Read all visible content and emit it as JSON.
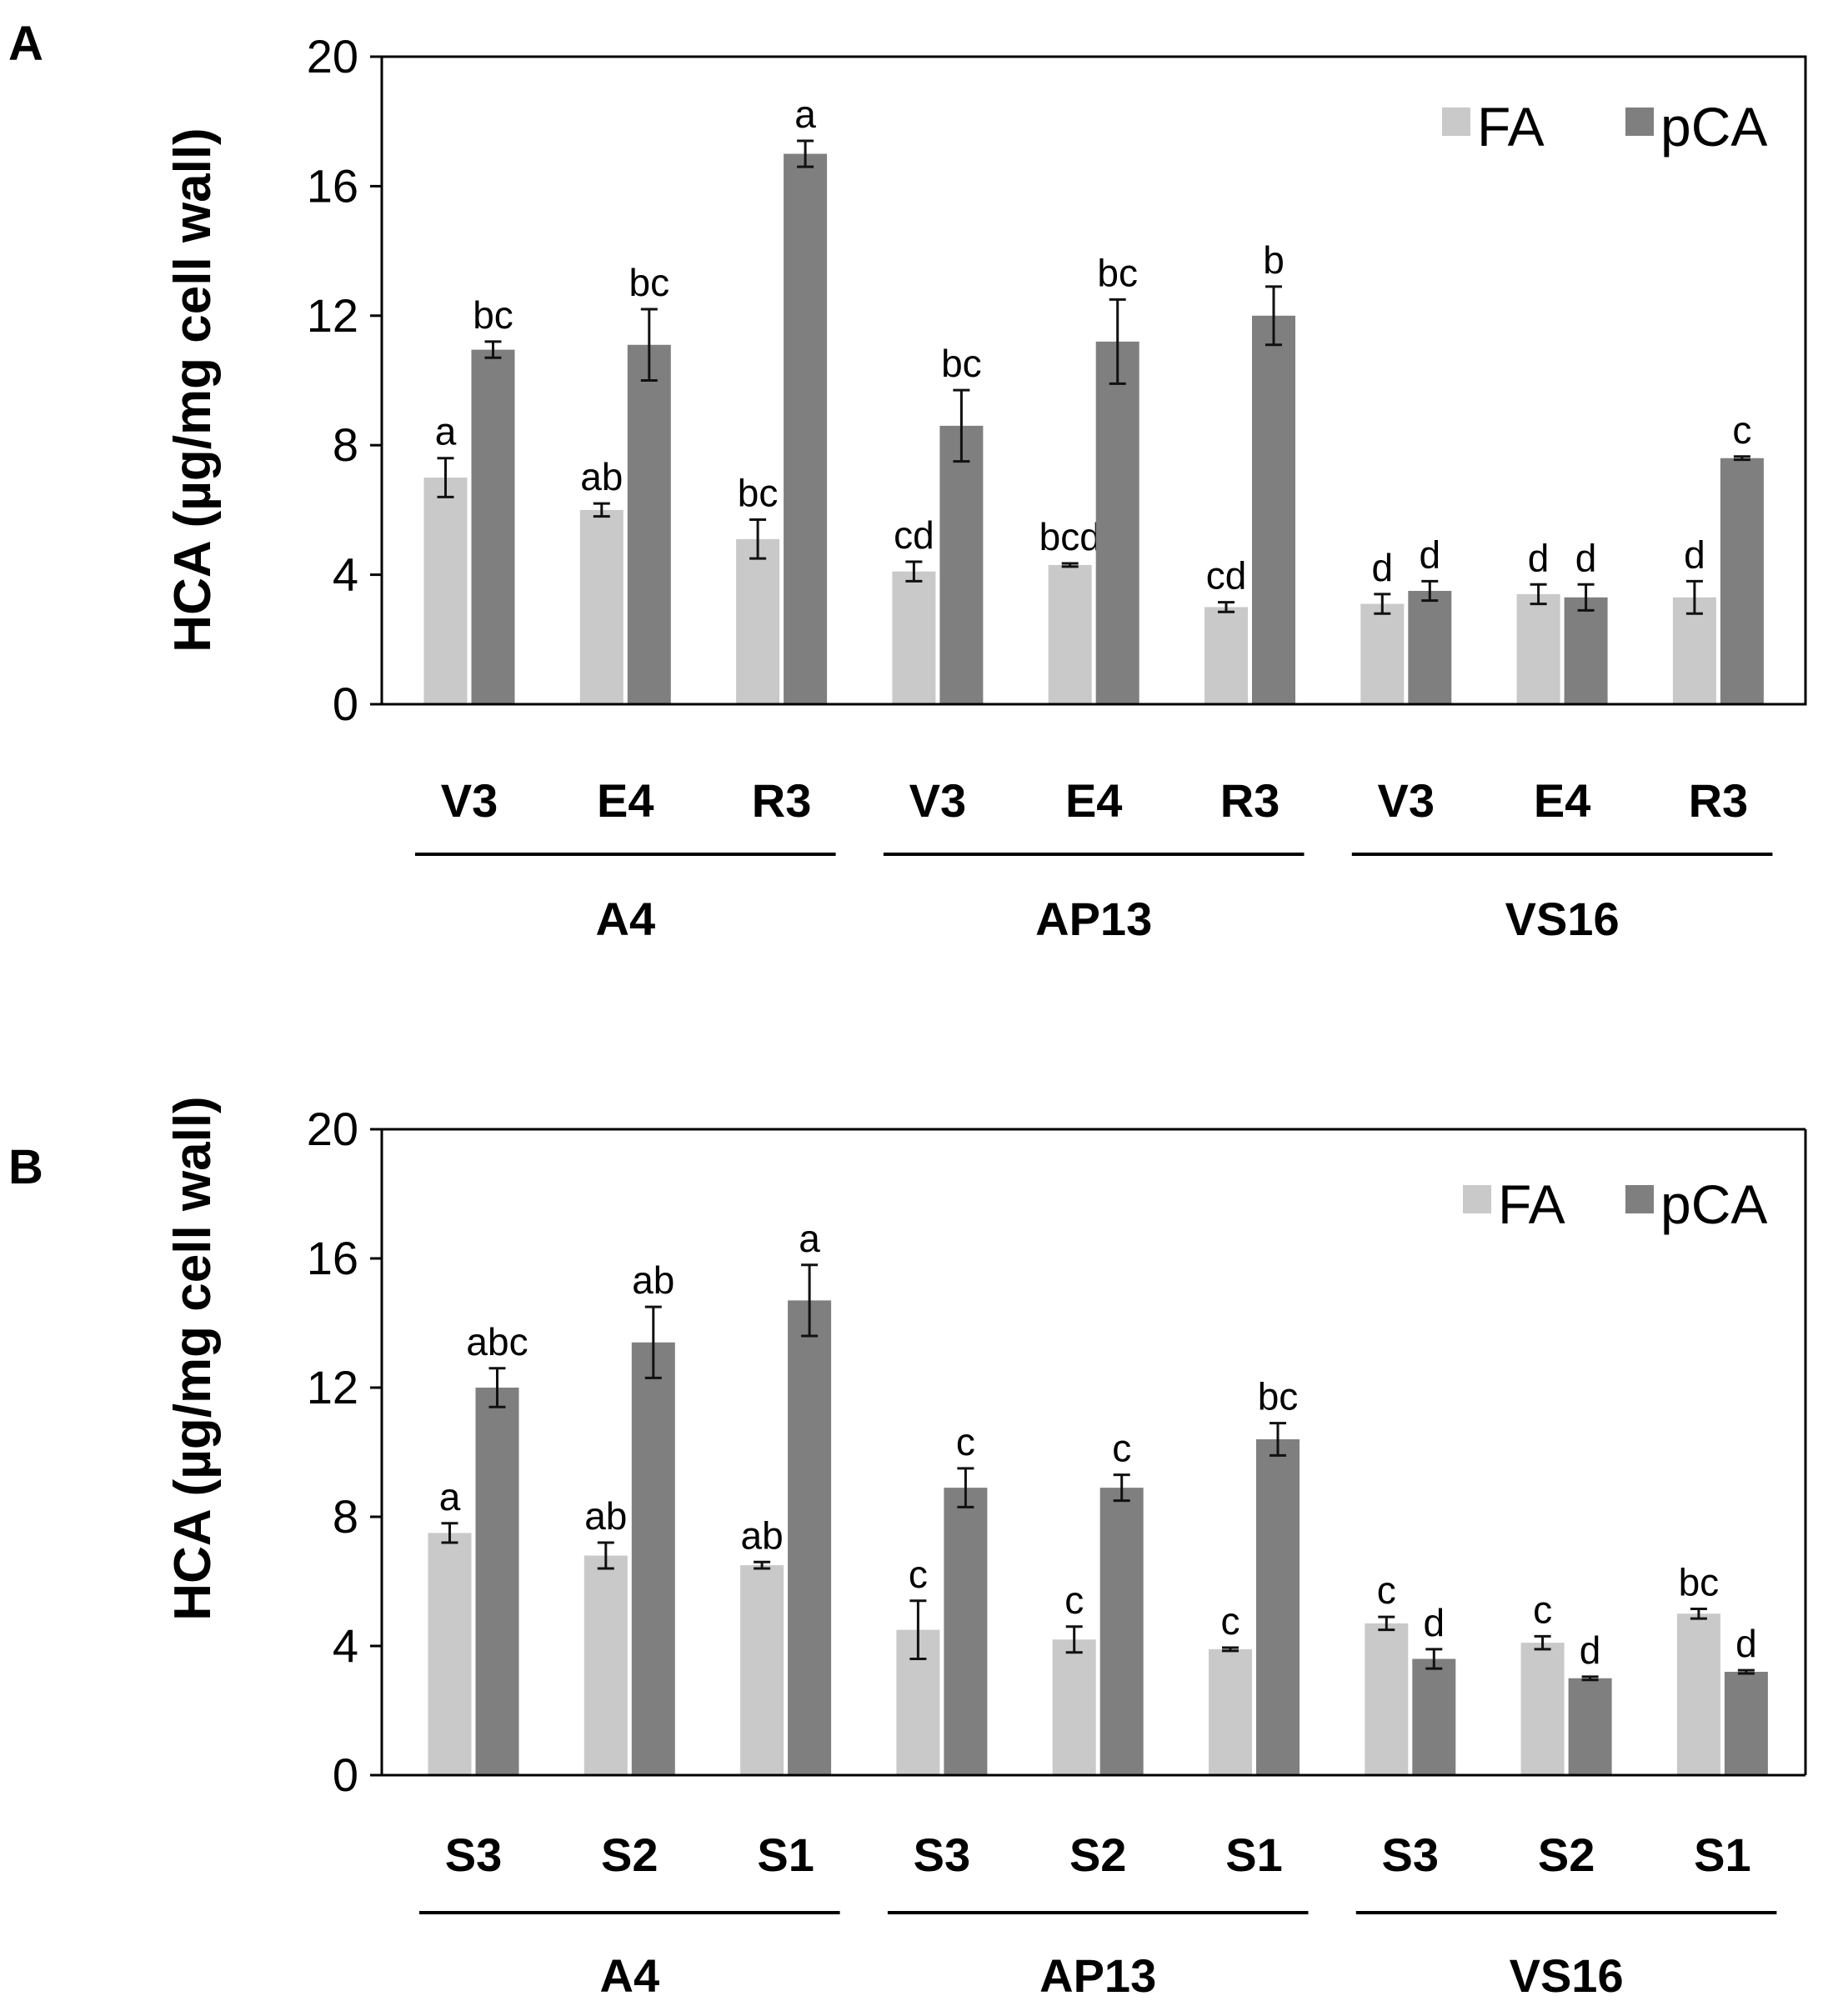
{
  "colors": {
    "fa": "#c9c9c9",
    "pca": "#7f7f7f",
    "axis": "#000000"
  },
  "chart_data": [
    {
      "panel": "A",
      "type": "bar",
      "ylabel": "HCA (µg/mg cell wall)",
      "ylim": [
        0,
        20
      ],
      "yticks": [
        "0",
        "4",
        "8",
        "12",
        "16",
        "20"
      ],
      "legend": {
        "placement": "top-right",
        "entries": [
          "FA",
          "pCA"
        ]
      },
      "categories": [
        "V3",
        "E4",
        "R3",
        "V3",
        "E4",
        "R3",
        "V3",
        "E4",
        "R3"
      ],
      "groups": [
        {
          "label": "A4",
          "members": [
            0,
            1,
            2
          ]
        },
        {
          "label": "AP13",
          "members": [
            3,
            4,
            5
          ]
        },
        {
          "label": "VS16",
          "members": [
            6,
            7,
            8
          ]
        }
      ],
      "series": [
        {
          "name": "FA",
          "values": [
            7.0,
            6.0,
            5.1,
            4.1,
            4.3,
            3.0,
            3.1,
            3.4,
            3.3
          ],
          "errors": [
            0.6,
            0.2,
            0.6,
            0.3,
            0.05,
            0.15,
            0.3,
            0.3,
            0.5
          ],
          "labels": [
            "a",
            "ab",
            "bc",
            "cd",
            "bcd",
            "cd",
            "d",
            "d",
            "d"
          ]
        },
        {
          "name": "pCA",
          "values": [
            10.95,
            11.1,
            17.0,
            8.6,
            11.2,
            12.0,
            3.5,
            3.3,
            7.6
          ],
          "errors": [
            0.25,
            1.1,
            0.4,
            1.1,
            1.3,
            0.9,
            0.3,
            0.4,
            0.05
          ],
          "labels": [
            "bc",
            "bc",
            "a",
            "bc",
            "bc",
            "b",
            "d",
            "d",
            "c"
          ]
        }
      ]
    },
    {
      "panel": "B",
      "type": "bar",
      "ylabel": "HCA (µg/mg cell wall)",
      "ylim": [
        0,
        20
      ],
      "yticks": [
        "0",
        "4",
        "8",
        "12",
        "16",
        "20"
      ],
      "legend": {
        "placement": "top-right",
        "entries": [
          "FA",
          "pCA"
        ]
      },
      "categories": [
        "S3",
        "S2",
        "S1",
        "S3",
        "S2",
        "S1",
        "S3",
        "S2",
        "S1"
      ],
      "groups": [
        {
          "label": "A4",
          "members": [
            0,
            1,
            2
          ]
        },
        {
          "label": "AP13",
          "members": [
            3,
            4,
            5
          ]
        },
        {
          "label": "VS16",
          "members": [
            6,
            7,
            8
          ]
        }
      ],
      "series": [
        {
          "name": "FA",
          "values": [
            7.5,
            6.8,
            6.5,
            4.5,
            4.2,
            3.9,
            4.7,
            4.1,
            5.0
          ],
          "errors": [
            0.3,
            0.4,
            0.1,
            0.9,
            0.4,
            0.05,
            0.2,
            0.2,
            0.15
          ],
          "labels": [
            "a",
            "ab",
            "ab",
            "c",
            "c",
            "c",
            "c",
            "c",
            "bc"
          ]
        },
        {
          "name": "pCA",
          "values": [
            12.0,
            13.4,
            14.7,
            8.9,
            8.9,
            10.4,
            3.6,
            3.0,
            3.2
          ],
          "errors": [
            0.6,
            1.1,
            1.1,
            0.6,
            0.4,
            0.5,
            0.3,
            0.05,
            0.05
          ],
          "labels": [
            "abc",
            "ab",
            "a",
            "c",
            "c",
            "bc",
            "d",
            "d",
            "d"
          ]
        }
      ]
    }
  ]
}
